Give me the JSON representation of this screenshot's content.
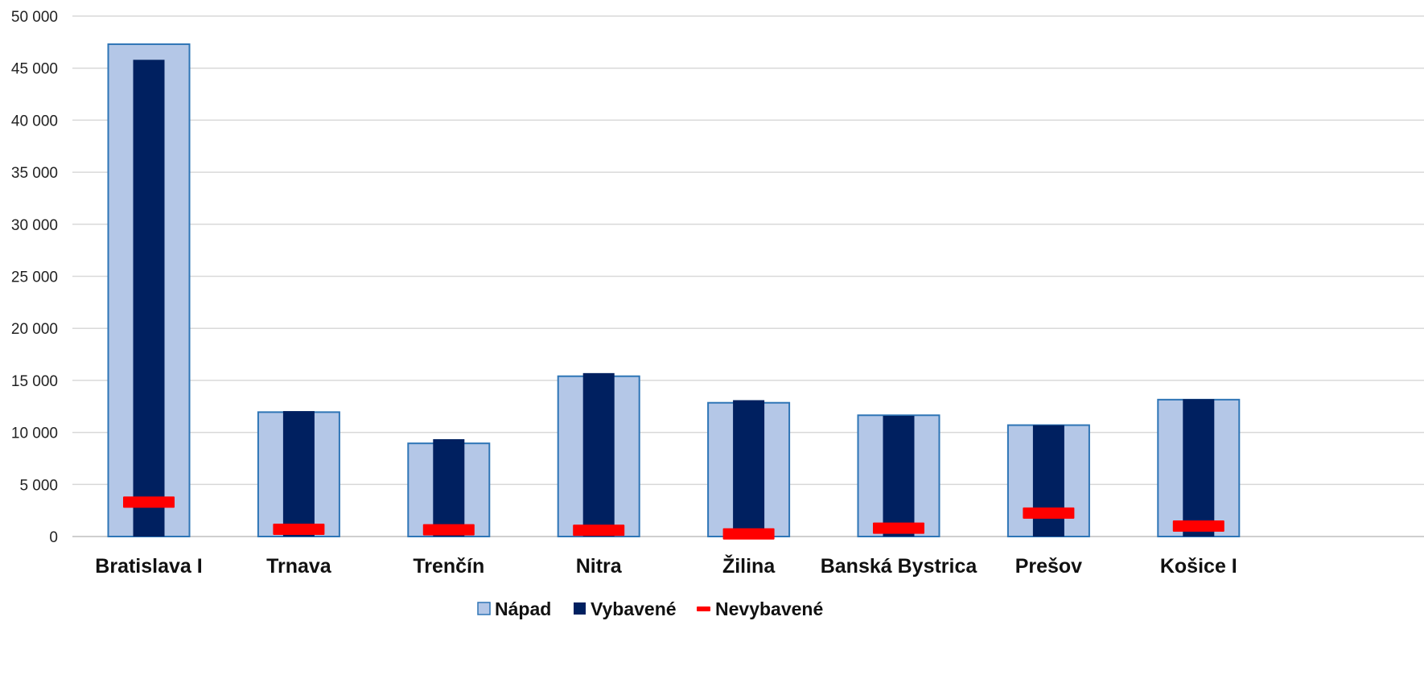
{
  "chart_data": {
    "type": "bar",
    "categories": [
      "Bratislava I",
      "Trnava",
      "Trenčín",
      "Nitra",
      "Žilina",
      "Banská Bystrica",
      "Prešov",
      "Košice I"
    ],
    "series": [
      {
        "name": "Nápad",
        "kind": "bar",
        "color": "#b4c7e7",
        "stroke": "#2e75b6",
        "values": [
          47300,
          11950,
          8950,
          15400,
          12850,
          11650,
          10700,
          13150
        ]
      },
      {
        "name": "Vybavené",
        "kind": "bar",
        "color": "#002060",
        "values": [
          45800,
          12050,
          9350,
          15700,
          13100,
          11600,
          10700,
          13200
        ]
      },
      {
        "name": "Nevybavené",
        "kind": "marker",
        "color": "#ff0000",
        "values": [
          3300,
          700,
          650,
          600,
          250,
          800,
          2250,
          1000
        ]
      }
    ],
    "ylim": [
      0,
      50000
    ],
    "yticks": [
      0,
      5000,
      10000,
      15000,
      20000,
      25000,
      30000,
      35000,
      40000,
      45000,
      50000
    ],
    "ytick_labels": [
      "0",
      "5 000",
      "10 000",
      "15 000",
      "20 000",
      "25 000",
      "30 000",
      "35 000",
      "40 000",
      "45 000",
      "50 000"
    ],
    "grid": true,
    "legend_position": "bottom"
  }
}
